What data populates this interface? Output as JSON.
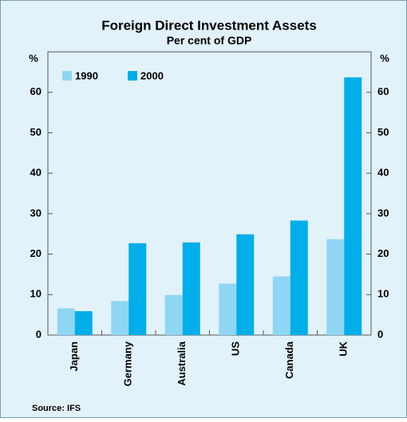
{
  "chart_data": {
    "type": "bar",
    "title": "Foreign Direct Investment Assets",
    "subtitle": "Per cent of GDP",
    "ylabel": "%",
    "y2label": "%",
    "categories": [
      "Japan",
      "Germany",
      "Australia",
      "US",
      "Canada",
      "UK"
    ],
    "series": [
      {
        "name": "1990",
        "color": "#8fd6f4",
        "values": [
          6.6,
          8.4,
          9.9,
          12.7,
          14.5,
          23.7
        ]
      },
      {
        "name": "2000",
        "color": "#00aee9",
        "values": [
          5.9,
          22.7,
          22.9,
          24.9,
          28.3,
          63.7
        ]
      }
    ],
    "ylim": [
      0,
      70
    ],
    "yticks": [
      0,
      10,
      20,
      30,
      40,
      50,
      60
    ],
    "y2lim": [
      0,
      70
    ],
    "y2ticks": [
      0,
      10,
      20,
      30,
      40,
      50,
      60
    ],
    "legend": "top-left",
    "source": "Source: IFS"
  }
}
